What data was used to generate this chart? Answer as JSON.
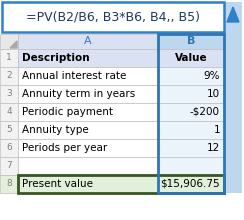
{
  "formula_text": "=PV(B2/B6, B3*B6, B4,, B5)",
  "rows": [
    {
      "num": 1,
      "a": "Description",
      "b": "Value",
      "header": true
    },
    {
      "num": 2,
      "a": "Annual interest rate",
      "b": "9%",
      "header": false
    },
    {
      "num": 3,
      "a": "Annuity term in years",
      "b": "10",
      "header": false
    },
    {
      "num": 4,
      "a": "Periodic payment",
      "b": "-$200",
      "header": false
    },
    {
      "num": 5,
      "a": "Annuity type",
      "b": "1",
      "header": false
    },
    {
      "num": 6,
      "a": "Periods per year",
      "b": "12",
      "header": false
    },
    {
      "num": 7,
      "a": "",
      "b": "",
      "header": false
    },
    {
      "num": 8,
      "a": "Present value",
      "b": "$15,906.75",
      "header": false,
      "result": true
    }
  ],
  "formula_box_color": "#FFFFFF",
  "formula_box_border": "#2F80C8",
  "formula_text_color": "#1F3864",
  "header_col_bg": "#D9E1F2",
  "header_col_text": "#4472C4",
  "row_header_bg": "#F2F2F2",
  "row_num_text": "#808080",
  "col_a_bg": "#FFFFFF",
  "row1_bg": "#D9E1F2",
  "result_bg_a": "#FFFFFF",
  "result_bg_b": "#FFFFFF",
  "result_border": "#375623",
  "grid_color": "#BFBFBF",
  "arrow_color": "#2F80C8",
  "scrollbar_bg": "#BDD7EE",
  "fig_bg": "#FFFFFF",
  "col_b_highlight_border": "#2E75B6",
  "col_b_data_bg": "#EBF3FB",
  "col_b_header_bg": "#BDD7EE"
}
